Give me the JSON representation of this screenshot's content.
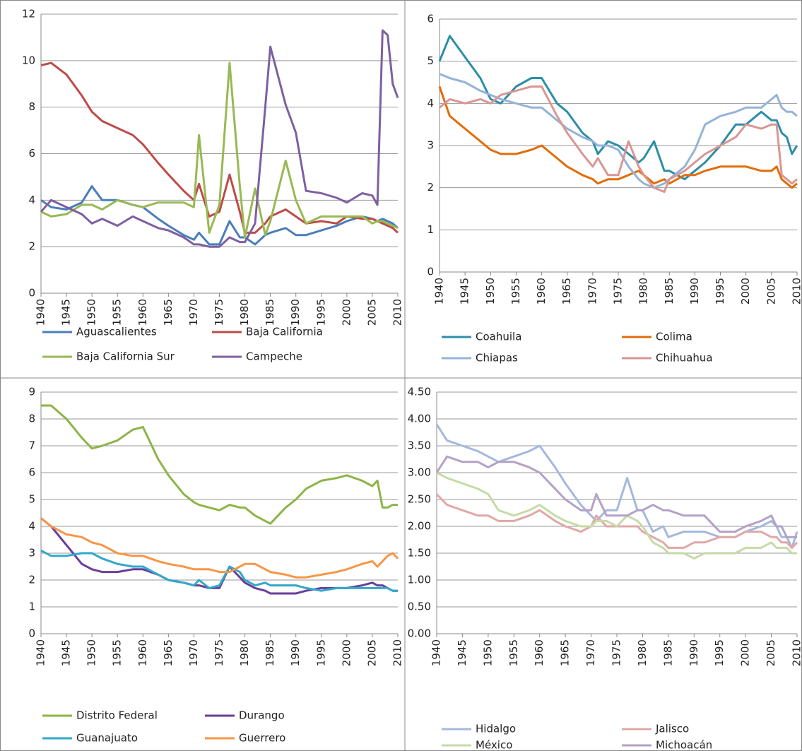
{
  "chart_data": [
    {
      "type": "line",
      "grid": true,
      "legend": "bottom",
      "x": [
        1940,
        1942,
        1945,
        1948,
        1950,
        1952,
        1955,
        1958,
        1960,
        1963,
        1965,
        1968,
        1970,
        1971,
        1973,
        1975,
        1977,
        1979,
        1980,
        1982,
        1984,
        1985,
        1988,
        1990,
        1992,
        1995,
        1998,
        2000,
        2003,
        2005,
        2006,
        2007,
        2008,
        2009,
        2010
      ],
      "xlim": [
        1940,
        2010
      ],
      "xticks": [
        1940,
        1945,
        1950,
        1955,
        1960,
        1965,
        1970,
        1975,
        1980,
        1985,
        1990,
        1995,
        2000,
        2005,
        2010
      ],
      "ylim": [
        0,
        12
      ],
      "yticks": [
        0,
        2,
        4,
        6,
        8,
        10,
        12
      ],
      "series": [
        {
          "name": "Aguascalientes",
          "color": "#4a7ebb",
          "values": [
            4.0,
            3.7,
            3.6,
            3.9,
            4.6,
            4.0,
            4.0,
            3.8,
            3.7,
            3.2,
            2.9,
            2.5,
            2.3,
            2.6,
            2.1,
            2.1,
            3.1,
            2.4,
            2.4,
            2.1,
            2.5,
            2.6,
            2.8,
            2.5,
            2.5,
            2.7,
            2.9,
            3.1,
            3.3,
            3.2,
            3.1,
            3.2,
            3.1,
            3.0,
            2.8
          ]
        },
        {
          "name": "Baja California",
          "color": "#be4b48",
          "values": [
            9.8,
            9.9,
            9.4,
            8.5,
            7.8,
            7.4,
            7.1,
            6.8,
            6.4,
            5.6,
            5.1,
            4.4,
            4.0,
            4.7,
            3.3,
            3.5,
            5.1,
            3.5,
            2.6,
            2.6,
            3.0,
            3.3,
            3.6,
            3.3,
            3.0,
            3.1,
            3.0,
            3.3,
            3.2,
            3.2,
            3.1,
            3.0,
            2.9,
            2.8,
            2.6
          ]
        },
        {
          "name": "Baja California Sur",
          "color": "#98b954",
          "values": [
            3.5,
            3.3,
            3.4,
            3.8,
            3.8,
            3.6,
            4.0,
            3.8,
            3.7,
            3.9,
            3.9,
            3.9,
            3.7,
            6.8,
            2.6,
            3.8,
            9.9,
            4.6,
            2.4,
            4.5,
            2.5,
            3.1,
            5.7,
            4.0,
            3.0,
            3.3,
            3.3,
            3.3,
            3.3,
            3.0,
            3.1,
            3.1,
            3.0,
            2.9,
            2.8
          ]
        },
        {
          "name": "Campeche",
          "color": "#7d60a0",
          "values": [
            3.5,
            4.0,
            3.7,
            3.4,
            3.0,
            3.2,
            2.9,
            3.3,
            3.1,
            2.8,
            2.7,
            2.4,
            2.1,
            2.1,
            2.0,
            2.0,
            2.4,
            2.2,
            2.2,
            3.0,
            8.0,
            10.6,
            8.1,
            6.9,
            4.4,
            4.3,
            4.1,
            3.9,
            4.3,
            4.2,
            3.8,
            11.3,
            11.1,
            9.0,
            8.4
          ]
        }
      ]
    },
    {
      "type": "line",
      "grid": true,
      "legend": "bottom",
      "x": [
        1940,
        1942,
        1945,
        1948,
        1950,
        1952,
        1955,
        1958,
        1960,
        1963,
        1965,
        1968,
        1970,
        1971,
        1973,
        1975,
        1977,
        1979,
        1980,
        1982,
        1984,
        1985,
        1988,
        1990,
        1992,
        1995,
        1998,
        2000,
        2003,
        2005,
        2006,
        2007,
        2008,
        2009,
        2010
      ],
      "xlim": [
        1940,
        2010
      ],
      "xticks": [
        1940,
        1945,
        1950,
        1955,
        1960,
        1965,
        1970,
        1975,
        1980,
        1985,
        1990,
        1995,
        2000,
        2005,
        2010
      ],
      "ylim": [
        0,
        6
      ],
      "yticks": [
        0,
        1,
        2,
        3,
        4,
        5,
        6
      ],
      "series": [
        {
          "name": "Coahuila",
          "color": "#2c8ea8",
          "values": [
            5.0,
            5.6,
            5.1,
            4.6,
            4.1,
            4.0,
            4.4,
            4.6,
            4.6,
            4.0,
            3.8,
            3.3,
            3.1,
            2.8,
            3.1,
            3.0,
            2.8,
            2.6,
            2.7,
            3.1,
            2.4,
            2.4,
            2.2,
            2.4,
            2.6,
            3.0,
            3.5,
            3.5,
            3.8,
            3.6,
            3.6,
            3.3,
            3.2,
            2.8,
            3.0
          ]
        },
        {
          "name": "Colima",
          "color": "#e36c09",
          "values": [
            4.4,
            3.7,
            3.4,
            3.1,
            2.9,
            2.8,
            2.8,
            2.9,
            3.0,
            2.7,
            2.5,
            2.3,
            2.2,
            2.1,
            2.2,
            2.2,
            2.3,
            2.4,
            2.3,
            2.1,
            2.2,
            2.1,
            2.3,
            2.3,
            2.4,
            2.5,
            2.5,
            2.5,
            2.4,
            2.4,
            2.5,
            2.2,
            2.1,
            2.0,
            2.1
          ]
        },
        {
          "name": "Chiapas",
          "color": "#95b3d7",
          "values": [
            4.7,
            4.6,
            4.5,
            4.3,
            4.2,
            4.1,
            4.0,
            3.9,
            3.9,
            3.6,
            3.4,
            3.2,
            3.1,
            3.0,
            3.0,
            2.9,
            2.5,
            2.2,
            2.1,
            2.0,
            2.1,
            2.2,
            2.5,
            2.9,
            3.5,
            3.7,
            3.8,
            3.9,
            3.9,
            4.1,
            4.2,
            3.9,
            3.8,
            3.8,
            3.7
          ]
        },
        {
          "name": "Chihuahua",
          "color": "#d99694",
          "values": [
            3.9,
            4.1,
            4.0,
            4.1,
            4.0,
            4.2,
            4.3,
            4.4,
            4.4,
            3.7,
            3.3,
            2.8,
            2.5,
            2.7,
            2.3,
            2.3,
            3.1,
            2.5,
            2.3,
            2.0,
            1.9,
            2.2,
            2.4,
            2.6,
            2.8,
            3.0,
            3.2,
            3.5,
            3.4,
            3.5,
            3.5,
            2.3,
            2.2,
            2.1,
            2.2
          ]
        }
      ]
    },
    {
      "type": "line",
      "grid": true,
      "legend": "bottom",
      "x": [
        1940,
        1942,
        1945,
        1948,
        1950,
        1952,
        1955,
        1958,
        1960,
        1963,
        1965,
        1968,
        1970,
        1971,
        1973,
        1975,
        1977,
        1979,
        1980,
        1982,
        1984,
        1985,
        1988,
        1990,
        1992,
        1995,
        1998,
        2000,
        2003,
        2005,
        2006,
        2007,
        2008,
        2009,
        2010
      ],
      "xlim": [
        1940,
        2010
      ],
      "xticks": [
        1940,
        1945,
        1950,
        1955,
        1960,
        1965,
        1970,
        1975,
        1980,
        1985,
        1990,
        1995,
        2000,
        2005,
        2010
      ],
      "ylim": [
        0,
        9
      ],
      "yticks": [
        0,
        1,
        2,
        3,
        4,
        5,
        6,
        7,
        8,
        9
      ],
      "series": [
        {
          "name": "Distrito Federal",
          "color": "#8db447",
          "values": [
            8.5,
            8.5,
            8.0,
            7.3,
            6.9,
            7.0,
            7.2,
            7.6,
            7.7,
            6.5,
            5.9,
            5.2,
            4.9,
            4.8,
            4.7,
            4.6,
            4.8,
            4.7,
            4.7,
            4.4,
            4.2,
            4.1,
            4.7,
            5.0,
            5.4,
            5.7,
            5.8,
            5.9,
            5.7,
            5.5,
            5.7,
            4.7,
            4.7,
            4.8,
            4.8
          ]
        },
        {
          "name": "Durango",
          "color": "#6a3d9a",
          "values": [
            4.3,
            4.0,
            3.3,
            2.6,
            2.4,
            2.3,
            2.3,
            2.4,
            2.4,
            2.2,
            2.0,
            1.9,
            1.8,
            1.8,
            1.7,
            1.7,
            2.5,
            2.1,
            1.9,
            1.7,
            1.6,
            1.5,
            1.5,
            1.5,
            1.6,
            1.7,
            1.7,
            1.7,
            1.8,
            1.9,
            1.8,
            1.8,
            1.7,
            1.6,
            1.6
          ]
        },
        {
          "name": "Guanajuato",
          "color": "#31a8c9",
          "values": [
            3.1,
            2.9,
            2.9,
            3.0,
            3.0,
            2.8,
            2.6,
            2.5,
            2.5,
            2.2,
            2.0,
            1.9,
            1.8,
            2.0,
            1.7,
            1.8,
            2.5,
            2.3,
            2.0,
            1.8,
            1.9,
            1.8,
            1.8,
            1.8,
            1.7,
            1.6,
            1.7,
            1.7,
            1.7,
            1.7,
            1.7,
            1.7,
            1.7,
            1.6,
            1.6
          ]
        },
        {
          "name": "Guerrero",
          "color": "#f79646",
          "values": [
            4.3,
            4.0,
            3.7,
            3.6,
            3.4,
            3.3,
            3.0,
            2.9,
            2.9,
            2.7,
            2.6,
            2.5,
            2.4,
            2.4,
            2.4,
            2.3,
            2.3,
            2.5,
            2.6,
            2.6,
            2.4,
            2.3,
            2.2,
            2.1,
            2.1,
            2.2,
            2.3,
            2.4,
            2.6,
            2.7,
            2.5,
            2.7,
            2.9,
            3.0,
            2.8
          ]
        }
      ]
    },
    {
      "type": "line",
      "grid": true,
      "legend": "bottom",
      "x": [
        1940,
        1942,
        1945,
        1948,
        1950,
        1952,
        1955,
        1958,
        1960,
        1963,
        1965,
        1968,
        1970,
        1971,
        1973,
        1975,
        1977,
        1979,
        1980,
        1982,
        1984,
        1985,
        1988,
        1990,
        1992,
        1995,
        1998,
        2000,
        2003,
        2005,
        2006,
        2007,
        2008,
        2009,
        2010
      ],
      "xlim": [
        1940,
        2010
      ],
      "xticks": [
        1940,
        1945,
        1950,
        1955,
        1960,
        1965,
        1970,
        1975,
        1980,
        1985,
        1990,
        1995,
        2000,
        2005,
        2010
      ],
      "ylim": [
        0,
        4.5
      ],
      "yticks": [
        {
          "value": 0,
          "label": "0.00"
        },
        {
          "value": 0.5,
          "label": "0.50"
        },
        {
          "value": 1,
          "label": "1.00"
        },
        {
          "value": 1.5,
          "label": "1.50"
        },
        {
          "value": 2,
          "label": "2.00"
        },
        {
          "value": 2.5,
          "label": "2.50"
        },
        {
          "value": 3,
          "label": "3.00"
        },
        {
          "value": 3.5,
          "label": "3.50"
        },
        {
          "value": 4,
          "label": "4.00"
        },
        {
          "value": 4.5,
          "label": "4.50"
        }
      ],
      "series": [
        {
          "name": "Hidalgo",
          "color": "#a5b8dd",
          "values": [
            3.9,
            3.6,
            3.5,
            3.4,
            3.3,
            3.2,
            3.3,
            3.4,
            3.5,
            3.1,
            2.8,
            2.4,
            2.2,
            2.1,
            2.3,
            2.3,
            2.9,
            2.3,
            2.3,
            1.9,
            2.0,
            1.8,
            1.9,
            1.9,
            1.9,
            1.8,
            1.8,
            1.9,
            2.0,
            2.1,
            2.0,
            1.8,
            1.8,
            1.6,
            1.9
          ]
        },
        {
          "name": "Jalisco",
          "color": "#e0a8a6",
          "values": [
            2.6,
            2.4,
            2.3,
            2.2,
            2.2,
            2.1,
            2.1,
            2.2,
            2.3,
            2.1,
            2.0,
            1.9,
            2.0,
            2.2,
            2.0,
            2.0,
            2.0,
            2.0,
            1.9,
            1.8,
            1.7,
            1.6,
            1.6,
            1.7,
            1.7,
            1.8,
            1.8,
            1.9,
            1.9,
            1.8,
            1.8,
            1.7,
            1.7,
            1.6,
            1.7
          ]
        },
        {
          "name": "México",
          "color": "#c6dba6",
          "values": [
            3.0,
            2.9,
            2.8,
            2.7,
            2.6,
            2.3,
            2.2,
            2.3,
            2.4,
            2.2,
            2.1,
            2.0,
            2.0,
            2.1,
            2.1,
            2.0,
            2.2,
            2.1,
            2.0,
            1.7,
            1.6,
            1.5,
            1.5,
            1.4,
            1.5,
            1.5,
            1.5,
            1.6,
            1.6,
            1.7,
            1.6,
            1.6,
            1.6,
            1.5,
            1.5
          ]
        },
        {
          "name": "Michoacán",
          "color": "#b3a2c7",
          "values": [
            3.0,
            3.3,
            3.2,
            3.2,
            3.1,
            3.2,
            3.2,
            3.1,
            3.0,
            2.7,
            2.5,
            2.3,
            2.3,
            2.6,
            2.2,
            2.2,
            2.2,
            2.3,
            2.3,
            2.4,
            2.3,
            2.3,
            2.2,
            2.2,
            2.2,
            1.9,
            1.9,
            2.0,
            2.1,
            2.2,
            2.0,
            2.0,
            1.8,
            1.8,
            1.8
          ]
        }
      ]
    }
  ]
}
